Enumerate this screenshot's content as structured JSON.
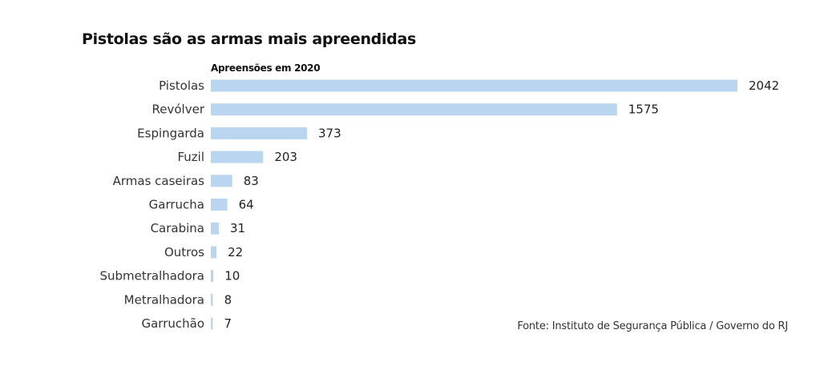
{
  "chart_data": {
    "type": "bar",
    "orientation": "horizontal",
    "title": "Pistolas são as armas mais apreendidas",
    "subtitle": "Apreensões em 2020",
    "source": "Fonte: Instituto de Segurança Pública / Governo do RJ",
    "categories": [
      "Pistolas",
      "Revólver",
      "Espingarda",
      "Fuzil",
      "Armas caseiras",
      "Garrucha",
      "Carabina",
      "Outros",
      "Submetralhadora",
      "Metralhadora",
      "Garruchão"
    ],
    "values": [
      2042,
      1575,
      373,
      203,
      83,
      64,
      31,
      22,
      10,
      8,
      7
    ],
    "xlim": [
      0,
      2042
    ],
    "grid": false,
    "bar_color": "#b9d5ef"
  }
}
